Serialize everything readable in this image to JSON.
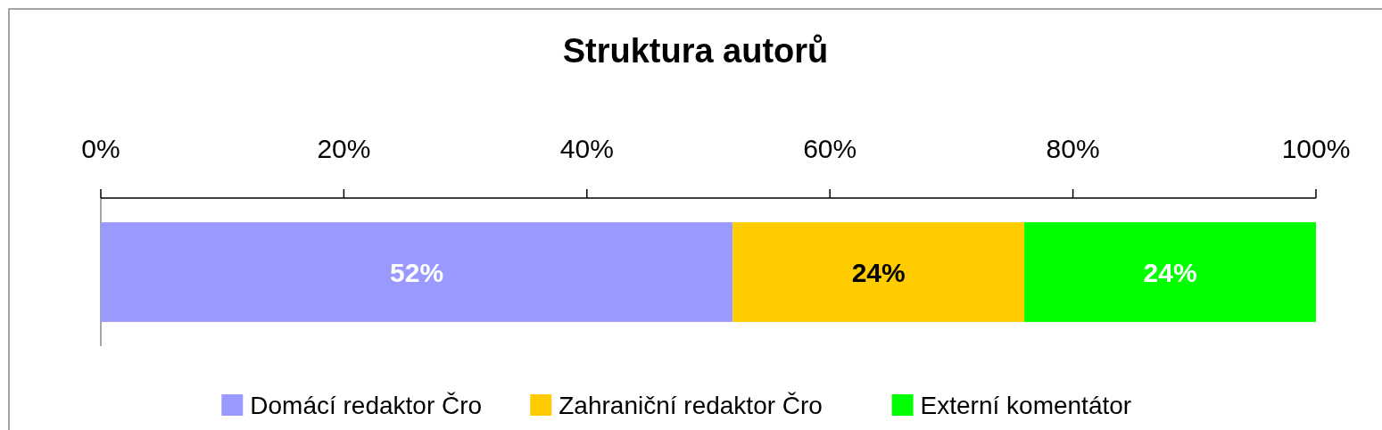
{
  "chart_data": {
    "type": "bar",
    "title": "Struktura autorů",
    "orientation": "horizontal",
    "stacked": true,
    "categories": [
      null
    ],
    "series": [
      {
        "name": "Domácí redaktor Čro",
        "color": "#9999ff",
        "values": [
          52
        ]
      },
      {
        "name": "Zahraniční redaktor Čro",
        "color": "#ffcc00",
        "values": [
          24
        ]
      },
      {
        "name": "Externí komentátor",
        "color": "#00ff00",
        "values": [
          24
        ]
      }
    ],
    "xlim": [
      0,
      100
    ],
    "xticks": [
      {
        "value": 0,
        "label": "0%"
      },
      {
        "value": 20,
        "label": "20%"
      },
      {
        "value": 40,
        "label": "40%"
      },
      {
        "value": 60,
        "label": "60%"
      },
      {
        "value": 80,
        "label": "80%"
      },
      {
        "value": 100,
        "label": "100%"
      }
    ],
    "value_labels": [
      [
        "52%"
      ],
      [
        "24%"
      ],
      [
        "24%"
      ]
    ],
    "legend": "bottom",
    "grid": false
  }
}
